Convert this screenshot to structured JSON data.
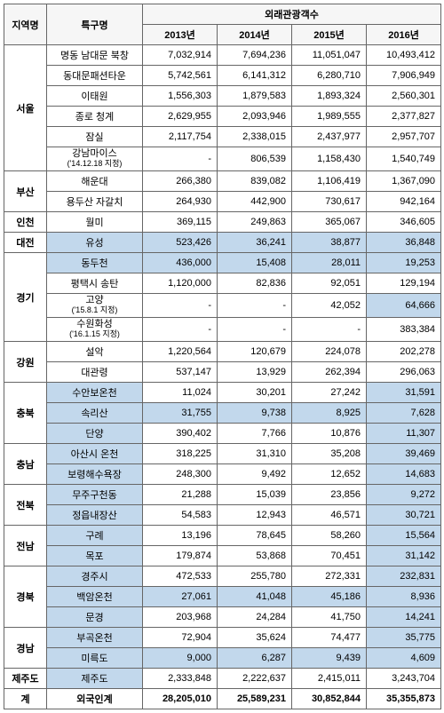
{
  "headers": {
    "region": "지역명",
    "district": "특구명",
    "group": "외래관광객수",
    "years": [
      "2013년",
      "2014년",
      "2015년",
      "2016년"
    ]
  },
  "regions": [
    {
      "name": "서울",
      "rows": [
        {
          "label": "명동 남대문 북창",
          "v": [
            "7,032,914",
            "7,694,236",
            "11,051,047",
            "10,493,412"
          ]
        },
        {
          "label": "동대문패션타운",
          "v": [
            "5,742,561",
            "6,141,312",
            "6,280,710",
            "7,906,949"
          ]
        },
        {
          "label": "이태원",
          "v": [
            "1,556,303",
            "1,879,583",
            "1,893,324",
            "2,560,301"
          ]
        },
        {
          "label": "종로 청계",
          "v": [
            "2,629,955",
            "2,093,946",
            "1,989,555",
            "2,377,827"
          ]
        },
        {
          "label": "잠실",
          "v": [
            "2,117,754",
            "2,338,015",
            "2,437,977",
            "2,957,707"
          ]
        },
        {
          "label": "강남마이스\n('14.12.18 지정)",
          "v": [
            "-",
            "806,539",
            "1,158,430",
            "1,540,749"
          ]
        }
      ]
    },
    {
      "name": "부산",
      "rows": [
        {
          "label": "해운대",
          "v": [
            "266,380",
            "839,082",
            "1,106,419",
            "1,367,090"
          ]
        },
        {
          "label": "용두산 자갈치",
          "v": [
            "264,930",
            "442,900",
            "730,617",
            "942,164"
          ]
        }
      ]
    },
    {
      "name": "인천",
      "rows": [
        {
          "label": "월미",
          "v": [
            "369,115",
            "249,863",
            "365,067",
            "346,605"
          ]
        }
      ]
    },
    {
      "name": "대전",
      "rows": [
        {
          "label": "유성",
          "v": [
            "523,426",
            "36,241",
            "38,877",
            "36,848"
          ],
          "hl": [
            0,
            1,
            2,
            3,
            4
          ]
        }
      ]
    },
    {
      "name": "경기",
      "rows": [
        {
          "label": "동두천",
          "v": [
            "436,000",
            "15,408",
            "28,011",
            "19,253"
          ],
          "hl": [
            0,
            1,
            2,
            3,
            4
          ]
        },
        {
          "label": "평택시 송탄",
          "v": [
            "1,120,000",
            "82,836",
            "92,051",
            "129,194"
          ]
        },
        {
          "label": "고양\n('15.8.1 지정)",
          "v": [
            "-",
            "-",
            "42,052",
            "64,666"
          ],
          "hl": [
            4
          ]
        },
        {
          "label": "수원화성\n('16.1.15 지정)",
          "v": [
            "-",
            "-",
            "-",
            "383,384"
          ]
        }
      ]
    },
    {
      "name": "강원",
      "rows": [
        {
          "label": "설악",
          "v": [
            "1,220,564",
            "120,679",
            "224,078",
            "202,278"
          ]
        },
        {
          "label": "대관령",
          "v": [
            "537,147",
            "13,929",
            "262,394",
            "296,063"
          ]
        }
      ]
    },
    {
      "name": "충북",
      "rows": [
        {
          "label": "수안보온천",
          "v": [
            "11,024",
            "30,201",
            "27,242",
            "31,591"
          ],
          "hl": [
            0,
            4
          ]
        },
        {
          "label": "속리산",
          "v": [
            "31,755",
            "9,738",
            "8,925",
            "7,628"
          ],
          "hl": [
            0,
            1,
            2,
            3,
            4
          ]
        },
        {
          "label": "단양",
          "v": [
            "390,402",
            "7,766",
            "10,876",
            "11,307"
          ],
          "hl": [
            0,
            4
          ]
        }
      ]
    },
    {
      "name": "충남",
      "rows": [
        {
          "label": "아산시 온천",
          "v": [
            "318,225",
            "31,310",
            "35,208",
            "39,469"
          ],
          "hl": [
            0,
            4
          ]
        },
        {
          "label": "보령해수욕장",
          "v": [
            "248,300",
            "9,492",
            "12,652",
            "14,683"
          ],
          "hl": [
            0,
            4
          ]
        }
      ]
    },
    {
      "name": "전북",
      "rows": [
        {
          "label": "무주구천동",
          "v": [
            "21,288",
            "15,039",
            "23,856",
            "9,272"
          ],
          "hl": [
            0,
            4
          ]
        },
        {
          "label": "정읍내장산",
          "v": [
            "54,583",
            "12,943",
            "46,571",
            "30,721"
          ],
          "hl": [
            0,
            4
          ]
        }
      ]
    },
    {
      "name": "전남",
      "rows": [
        {
          "label": "구례",
          "v": [
            "13,196",
            "78,645",
            "58,260",
            "15,564"
          ],
          "hl": [
            0,
            4
          ]
        },
        {
          "label": "목포",
          "v": [
            "179,874",
            "53,868",
            "70,451",
            "31,142"
          ],
          "hl": [
            0,
            4
          ]
        }
      ]
    },
    {
      "name": "경북",
      "rows": [
        {
          "label": "경주시",
          "v": [
            "472,533",
            "255,780",
            "272,331",
            "232,831"
          ],
          "hl": [
            0,
            4
          ]
        },
        {
          "label": "백암온천",
          "v": [
            "27,061",
            "41,048",
            "45,186",
            "8,936"
          ],
          "hl": [
            0,
            1,
            2,
            3,
            4
          ]
        },
        {
          "label": "문경",
          "v": [
            "203,968",
            "24,284",
            "41,750",
            "14,241"
          ],
          "hl": [
            0,
            4
          ]
        }
      ]
    },
    {
      "name": "경남",
      "rows": [
        {
          "label": "부곡온천",
          "v": [
            "72,904",
            "35,624",
            "74,477",
            "35,775"
          ],
          "hl": [
            0,
            4
          ]
        },
        {
          "label": "미륵도",
          "v": [
            "9,000",
            "6,287",
            "9,439",
            "4,609"
          ],
          "hl": [
            0,
            1,
            2,
            3,
            4
          ]
        }
      ]
    },
    {
      "name": "제주도",
      "rows": [
        {
          "label": "제주도",
          "v": [
            "2,333,848",
            "2,222,637",
            "2,415,011",
            "3,243,704"
          ],
          "hl": [
            0
          ]
        }
      ]
    }
  ],
  "total": {
    "region": "계",
    "label": "외국인계",
    "v": [
      "28,205,010",
      "25,589,231",
      "30,852,844",
      "35,355,873"
    ]
  }
}
